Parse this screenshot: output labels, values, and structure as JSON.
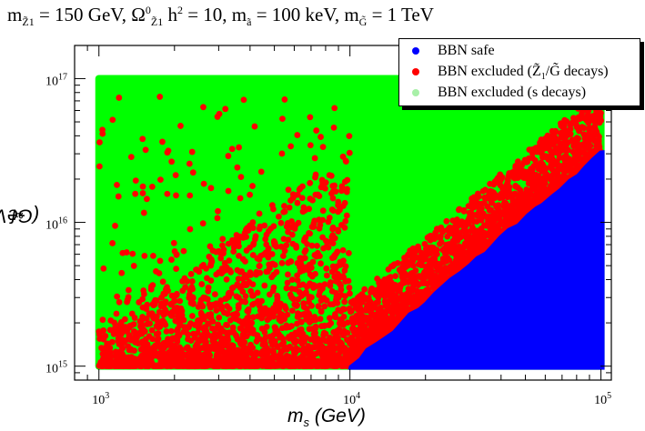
{
  "chart_data": {
    "type": "scatter",
    "title": "m_Z1 = 150 GeV, Ω_Z1^0 h^2 = 10, m_ã = 100 keV, m_G̃ = 1 TeV",
    "title_parts": {
      "p1": "m",
      "p1_sub": "Z̃",
      "p1_sub2": "1",
      "p2": " = 150 GeV, Ω",
      "p2_sup": "0",
      "p2_sub": "Z̃",
      "p2_sub2": "1",
      "p3": " h",
      "p3_sup": "2",
      "p4": " = 10, m",
      "p4_sub": "ã",
      "p5": " = 100 keV, m",
      "p5_sub": "G̃",
      "p6": " = 1 TeV"
    },
    "xlabel": "m",
    "xlabel_sub": "s",
    "xlabel_unit": " (GeV)",
    "ylabel": "f",
    "ylabel_sub": "a",
    "ylabel_unit": " (GeV)",
    "x_scale": "log",
    "y_scale": "log",
    "xlim": [
      800,
      110000
    ],
    "ylim": [
      800000000000000,
      170000000000000000
    ],
    "x_ticks": [
      {
        "value": 1000,
        "label": "10",
        "exp": "3"
      },
      {
        "value": 10000,
        "label": "10",
        "exp": "4"
      },
      {
        "value": 100000,
        "label": "10",
        "exp": "5"
      }
    ],
    "y_ticks": [
      {
        "value": 1000000000000000,
        "label": "10",
        "exp": "15"
      },
      {
        "value": 10000000000000000,
        "label": "10",
        "exp": "16"
      },
      {
        "value": 100000000000000000,
        "label": "10",
        "exp": "17"
      }
    ],
    "grid": false,
    "legend_position": "top-right",
    "series": [
      {
        "name": "BBN safe",
        "color": "#0000ff",
        "region": {
          "x_min": 10000,
          "x_max": 100000,
          "y_min": 1000000000000000,
          "boundary_points": [
            [
              10000,
              1000000000000000
            ],
            [
              100000,
              30000000000000000
            ]
          ]
        }
      },
      {
        "name": "BBN excluded (Z̃1/G̃ decays)",
        "legend_main": "BBN excluded (",
        "legend_z": "Z̃",
        "legend_z_sub": "1",
        "legend_mid": "/G̃ decays)",
        "color": "#ff0000",
        "density_profile": "dense near f_a = 10^15 and along the BBN-safe boundary, sparse toward high f_a"
      },
      {
        "name": "BBN excluded (s decays)",
        "color": "#00ff00",
        "legend_color": "#a8f0a8",
        "region": {
          "x_min": 1000,
          "x_max": 100000,
          "y_min": 1000000000000000,
          "y_max": 100000000000000000
        }
      }
    ]
  }
}
